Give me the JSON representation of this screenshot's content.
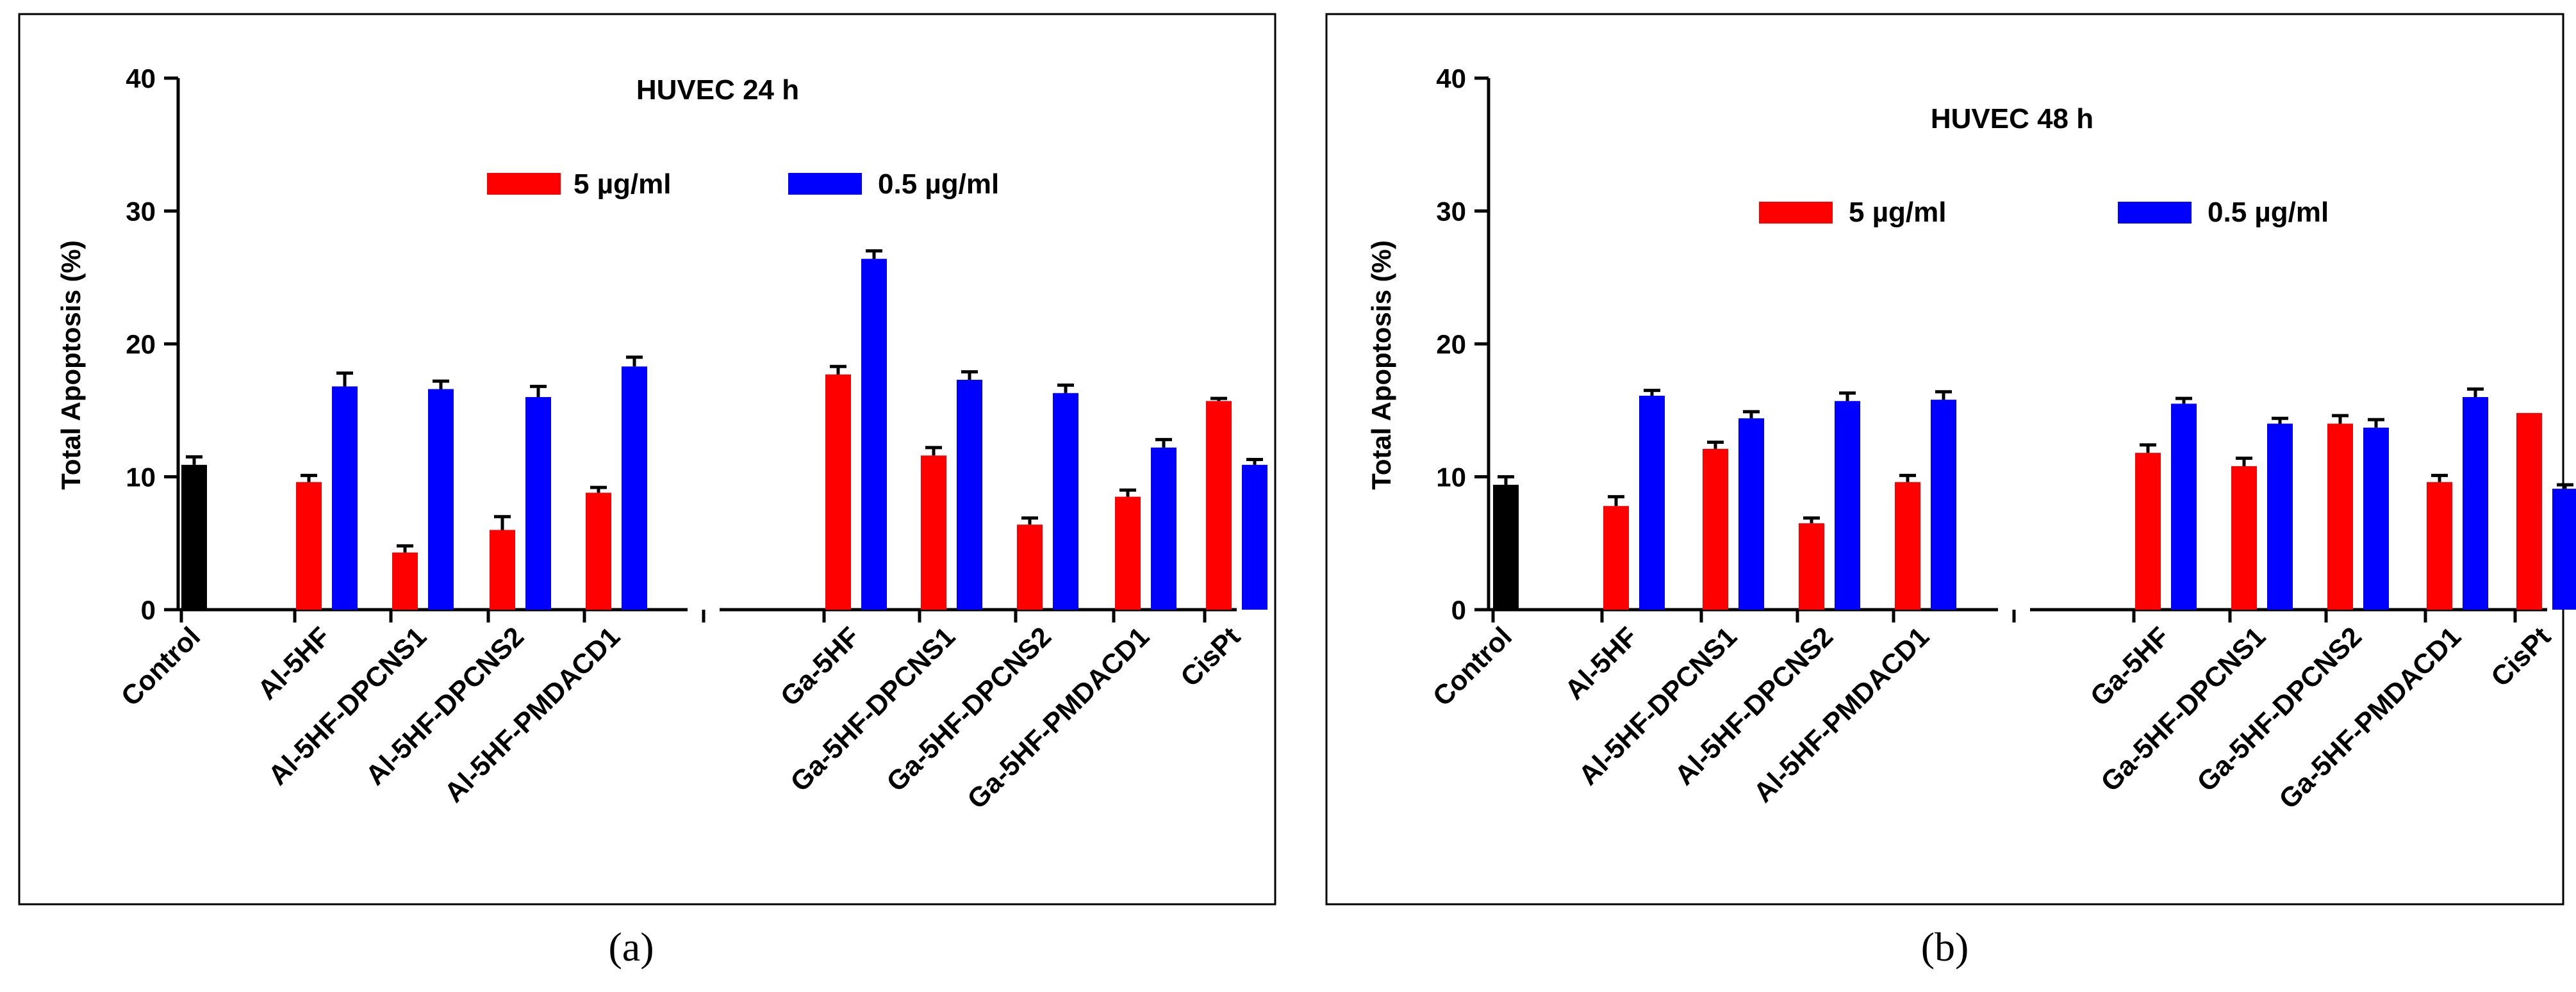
{
  "chart_data": [
    {
      "type": "bar",
      "panel_label": "a",
      "title": "HUVEC 24 h",
      "ylabel": "Total Apoptosis (%)",
      "xlabel": "",
      "ylim": [
        0,
        40
      ],
      "yticks": [
        0,
        10,
        20,
        30,
        40
      ],
      "legend": "top",
      "groups": [
        {
          "label": "Control",
          "bars": [
            {
              "series": "control",
              "value": 10.9,
              "error": 0.6
            }
          ]
        },
        {
          "label": "Al-5HF",
          "bars": [
            {
              "series": "5 µg/ml",
              "value": 9.6,
              "error": 0.5
            },
            {
              "series": "0.5 µg/ml",
              "value": 16.8,
              "error": 1.0
            }
          ]
        },
        {
          "label": "Al-5HF-DPCNS1",
          "bars": [
            {
              "series": "5 µg/ml",
              "value": 4.3,
              "error": 0.5
            },
            {
              "series": "0.5 µg/ml",
              "value": 16.6,
              "error": 0.6
            }
          ]
        },
        {
          "label": "Al-5HF-DPCNS2",
          "bars": [
            {
              "series": "5 µg/ml",
              "value": 6.0,
              "error": 1.0
            },
            {
              "series": "0.5 µg/ml",
              "value": 16.0,
              "error": 0.8
            }
          ]
        },
        {
          "label": "Al-5HF-PMDACD1",
          "bars": [
            {
              "series": "5 µg/ml",
              "value": 8.8,
              "error": 0.4
            },
            {
              "series": "0.5 µg/ml",
              "value": 18.3,
              "error": 0.7
            }
          ]
        },
        {
          "gap": true
        },
        {
          "label": "Ga-5HF",
          "bars": [
            {
              "series": "5 µg/ml",
              "value": 17.7,
              "error": 0.6
            },
            {
              "series": "0.5 µg/ml",
              "value": 26.4,
              "error": 0.6
            }
          ]
        },
        {
          "label": "Ga-5HF-DPCNS1",
          "bars": [
            {
              "series": "5 µg/ml",
              "value": 11.6,
              "error": 0.6
            },
            {
              "series": "0.5 µg/ml",
              "value": 17.3,
              "error": 0.6
            }
          ]
        },
        {
          "label": "Ga-5HF-DPCNS2",
          "bars": [
            {
              "series": "5 µg/ml",
              "value": 6.4,
              "error": 0.5
            },
            {
              "series": "0.5 µg/ml",
              "value": 16.3,
              "error": 0.6
            }
          ]
        },
        {
          "label": "Ga-5HF-PMDACD1",
          "bars": [
            {
              "series": "5 µg/ml",
              "value": 8.5,
              "error": 0.5
            },
            {
              "series": "0.5 µg/ml",
              "value": 12.2,
              "error": 0.6
            }
          ]
        },
        {
          "label": "CisPt",
          "bars": [
            {
              "series": "5 µg/ml",
              "value": 15.7,
              "error": 0.2
            },
            {
              "series": "0.5 µg/ml",
              "value": 10.9,
              "error": 0.4
            }
          ]
        }
      ]
    },
    {
      "type": "bar",
      "panel_label": "b",
      "title": "HUVEC 48 h",
      "ylabel": "Total Apoptosis (%)",
      "xlabel": "",
      "ylim": [
        0,
        40
      ],
      "yticks": [
        0,
        10,
        20,
        30,
        40
      ],
      "legend": "top",
      "groups": [
        {
          "label": "Control",
          "bars": [
            {
              "series": "control",
              "value": 9.4,
              "error": 0.6
            }
          ]
        },
        {
          "label": "Al-5HF",
          "bars": [
            {
              "series": "5 µg/ml",
              "value": 7.8,
              "error": 0.7
            },
            {
              "series": "0.5 µg/ml",
              "value": 16.1,
              "error": 0.4
            }
          ]
        },
        {
          "label": "Al-5HF-DPCNS1",
          "bars": [
            {
              "series": "5 µg/ml",
              "value": 12.1,
              "error": 0.5
            },
            {
              "series": "0.5 µg/ml",
              "value": 14.4,
              "error": 0.5
            }
          ]
        },
        {
          "label": "Al-5HF-DPCNS2",
          "bars": [
            {
              "series": "5 µg/ml",
              "value": 6.5,
              "error": 0.4
            },
            {
              "series": "0.5 µg/ml",
              "value": 15.7,
              "error": 0.6
            }
          ]
        },
        {
          "label": "Al-5HF-PMDACD1",
          "bars": [
            {
              "series": "5 µg/ml",
              "value": 9.6,
              "error": 0.5
            },
            {
              "series": "0.5 µg/ml",
              "value": 15.8,
              "error": 0.6
            }
          ]
        },
        {
          "gap": true
        },
        {
          "label": "Ga-5HF",
          "bars": [
            {
              "series": "5 µg/ml",
              "value": 11.8,
              "error": 0.6
            },
            {
              "series": "0.5 µg/ml",
              "value": 15.5,
              "error": 0.4
            }
          ]
        },
        {
          "label": "Ga-5HF-DPCNS1",
          "bars": [
            {
              "series": "5 µg/ml",
              "value": 10.8,
              "error": 0.6
            },
            {
              "series": "0.5 µg/ml",
              "value": 14.0,
              "error": 0.4
            }
          ]
        },
        {
          "label": "Ga-5HF-DPCNS2",
          "bars": [
            {
              "series": "5 µg/ml",
              "value": 14.0,
              "error": 0.6
            },
            {
              "series": "0.5 µg/ml",
              "value": 13.7,
              "error": 0.6
            }
          ]
        },
        {
          "label": "Ga-5HF-PMDACD1",
          "bars": [
            {
              "series": "5 µg/ml",
              "value": 9.6,
              "error": 0.5
            },
            {
              "series": "0.5 µg/ml",
              "value": 16.0,
              "error": 0.6
            }
          ]
        },
        {
          "label": "CisPt",
          "bars": [
            {
              "series": "5 µg/ml",
              "value": 14.8,
              "error": 0
            },
            {
              "series": "0.5 µg/ml",
              "value": 9.1,
              "error": 0.3
            }
          ]
        }
      ]
    }
  ],
  "legend": {
    "series": [
      {
        "name": "5 µg/ml",
        "color": "#ff0000"
      },
      {
        "name": "0.5 µg/ml",
        "color": "#0000ff"
      }
    ],
    "control_color": "#000000"
  },
  "captions": [
    "(a)",
    "(b)"
  ]
}
